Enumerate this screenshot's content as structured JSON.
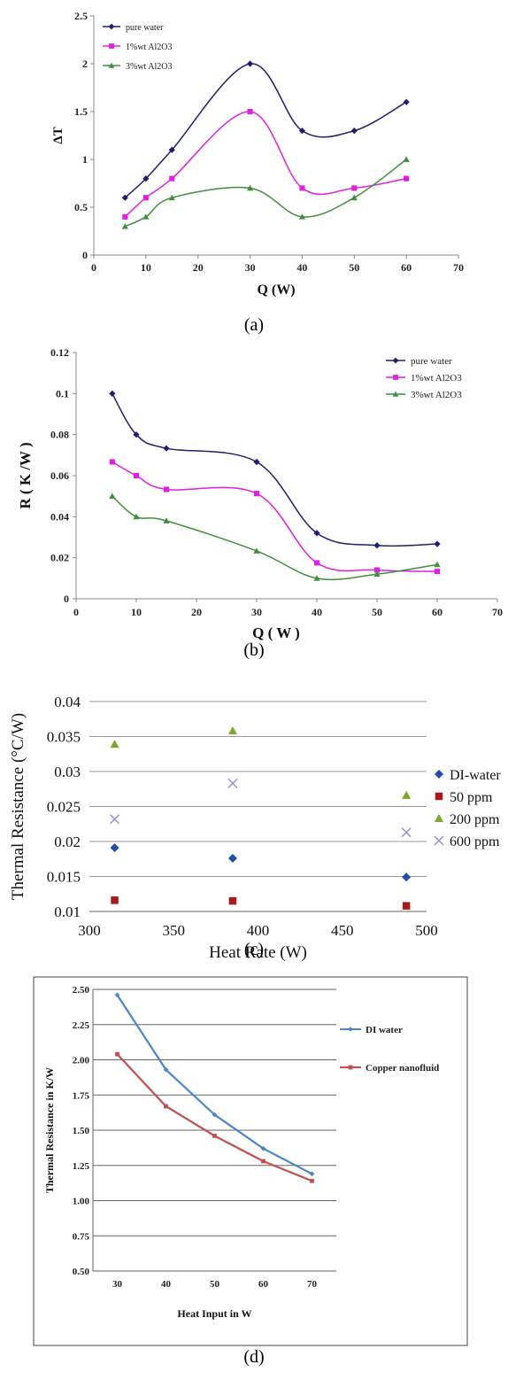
{
  "captions": [
    "(a)",
    "(b)",
    "(c)",
    "(d)"
  ],
  "chart_data": [
    {
      "type": "line",
      "xlabel": "Q (W)",
      "ylabel": "ΔT",
      "xlim": [
        0,
        70
      ],
      "ylim": [
        0,
        2.5
      ],
      "xticks": [
        "0",
        "10",
        "20",
        "30",
        "40",
        "50",
        "60",
        "70"
      ],
      "yticks": [
        "0",
        "0.5",
        "1",
        "1.5",
        "2",
        "2.5"
      ],
      "x": [
        6,
        10,
        15,
        30,
        40,
        50,
        60
      ],
      "legend_position": "top-left",
      "series": [
        {
          "name": "pure water",
          "values": [
            0.6,
            0.8,
            1.1,
            2.0,
            1.3,
            1.3,
            1.6
          ],
          "color": "#1f1f6e",
          "marker": "diamond"
        },
        {
          "name": "1%wt Al2O3",
          "values": [
            0.4,
            0.6,
            0.8,
            1.5,
            0.7,
            0.7,
            0.8
          ],
          "color": "#e020e0",
          "marker": "square"
        },
        {
          "name": "3%wt Al2O3",
          "values": [
            0.3,
            0.4,
            0.6,
            0.7,
            0.4,
            0.6,
            1.0
          ],
          "color": "#3f8f3f",
          "marker": "triangle"
        }
      ]
    },
    {
      "type": "line",
      "xlabel": "Q ( W )",
      "ylabel": "R ( K /W )",
      "xlim": [
        0,
        70
      ],
      "ylim": [
        0,
        0.12
      ],
      "xticks": [
        "0",
        "10",
        "20",
        "30",
        "40",
        "50",
        "60",
        "70"
      ],
      "yticks": [
        "0",
        "0.02",
        "0.04",
        "0.06",
        "0.08",
        "0.1",
        "0.12"
      ],
      "x": [
        6,
        10,
        15,
        30,
        40,
        50,
        60
      ],
      "legend_position": "top-right",
      "series": [
        {
          "name": "pure water",
          "values": [
            0.1,
            0.08,
            0.0733,
            0.0667,
            0.032,
            0.026,
            0.0267
          ],
          "color": "#1f1f6e",
          "marker": "diamond"
        },
        {
          "name": "1%wt Al2O3",
          "values": [
            0.0667,
            0.06,
            0.0533,
            0.0513,
            0.0175,
            0.014,
            0.0133
          ],
          "color": "#e020e0",
          "marker": "square"
        },
        {
          "name": "3%wt Al2O3",
          "values": [
            0.05,
            0.04,
            0.038,
            0.0233,
            0.01,
            0.012,
            0.0167
          ],
          "color": "#3f8f3f",
          "marker": "triangle"
        }
      ]
    },
    {
      "type": "scatter",
      "xlabel": "Heat Rate (W)",
      "ylabel": "Thermal Resistance (°C/W)",
      "xlim": [
        300,
        500
      ],
      "ylim": [
        0.01,
        0.04
      ],
      "xticks": [
        "300",
        "350",
        "400",
        "450",
        "500"
      ],
      "yticks": [
        "0.01",
        "0.015",
        "0.02",
        "0.025",
        "0.03",
        "0.035",
        "0.04"
      ],
      "x": [
        315,
        385,
        488
      ],
      "grid": true,
      "legend_position": "right",
      "series": [
        {
          "name": "DI-water",
          "values": [
            0.0191,
            0.0176,
            0.0149
          ],
          "color": "#1f4fa8",
          "marker": "diamond"
        },
        {
          "name": "50 ppm",
          "values": [
            0.0116,
            0.0115,
            0.0108
          ],
          "color": "#aa1a1a",
          "marker": "square"
        },
        {
          "name": "200 ppm",
          "values": [
            0.0339,
            0.0358,
            0.0266
          ],
          "color": "#7aa62a",
          "marker": "triangle"
        },
        {
          "name": "600 ppm",
          "values": [
            0.0232,
            0.0283,
            0.0213
          ],
          "color": "#8f8fd8",
          "marker": "x"
        }
      ]
    },
    {
      "type": "line",
      "xlabel": "Heat Input in W",
      "ylabel": "Thermal Resistance in K/W",
      "ylim": [
        0.5,
        2.5
      ],
      "categories": [
        "30",
        "40",
        "50",
        "60",
        "70"
      ],
      "yticks": [
        "0.50",
        "0.75",
        "1.00",
        "1.25",
        "1.50",
        "1.75",
        "2.00",
        "2.25",
        "2.50"
      ],
      "grid": true,
      "legend_position": "right",
      "series": [
        {
          "name": "DI water",
          "values": [
            2.46,
            1.93,
            1.61,
            1.37,
            1.19
          ],
          "color": "#4a86c8",
          "marker": "diamond"
        },
        {
          "name": "Copper nanofluid",
          "values": [
            2.04,
            1.67,
            1.46,
            1.28,
            1.14
          ],
          "color": "#c0504d",
          "marker": "square"
        }
      ]
    }
  ]
}
